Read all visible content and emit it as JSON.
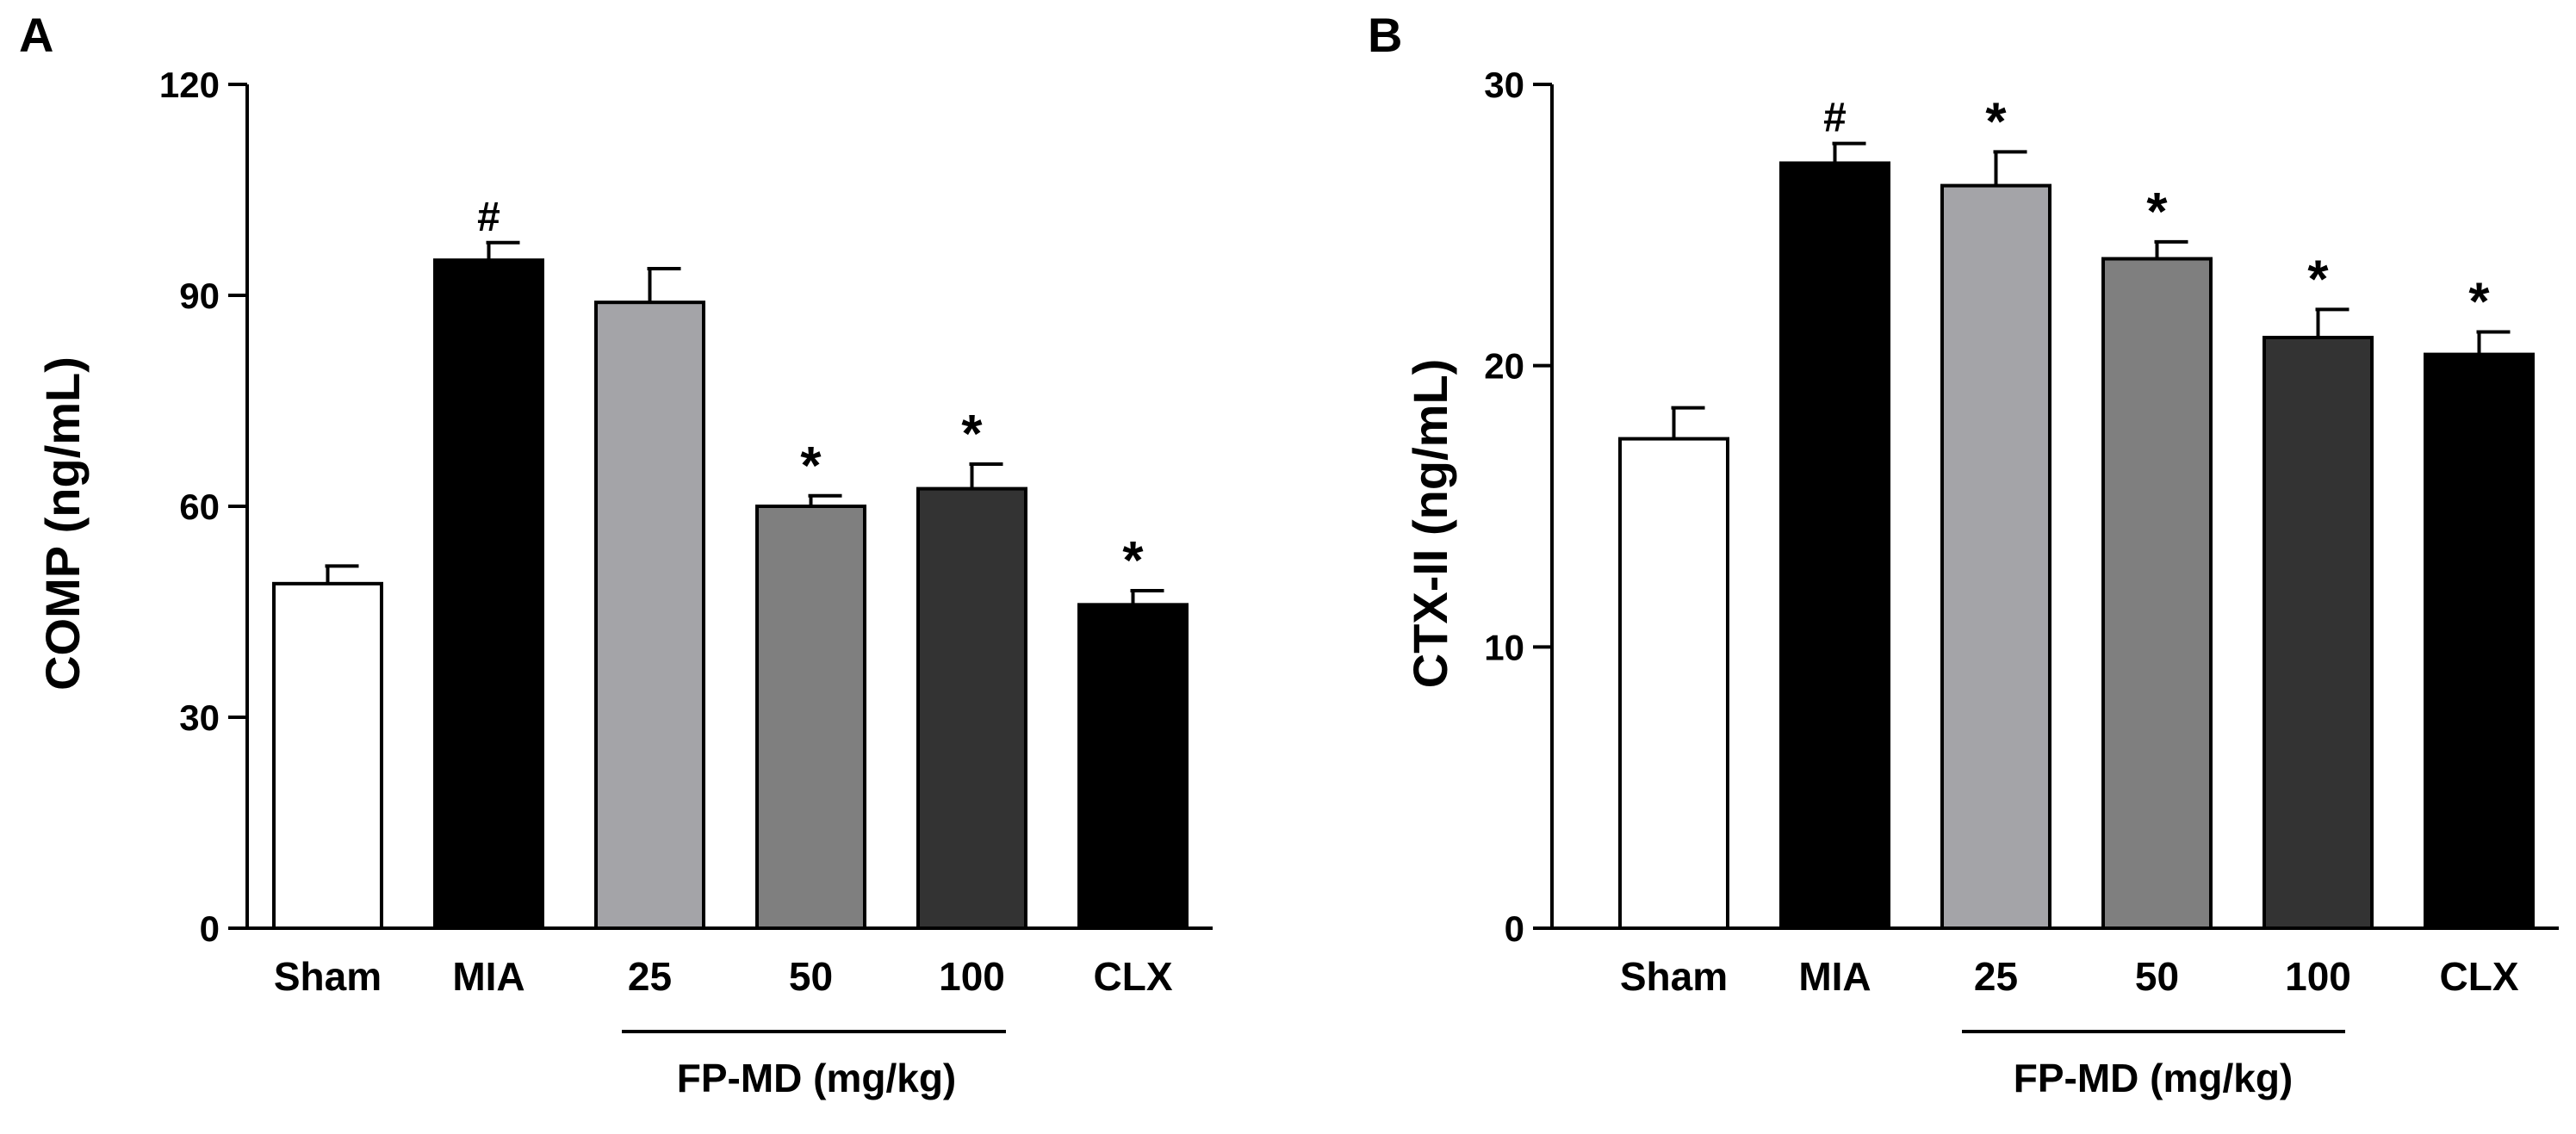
{
  "chart_data": [
    {
      "panel_label": "A",
      "type": "bar",
      "title": "",
      "ylabel": "COMP (ng/mL)",
      "xlabel": "",
      "ylim": [
        0,
        120
      ],
      "yticks": [
        0,
        30,
        60,
        90,
        120
      ],
      "categories": [
        "Sham",
        "MIA",
        "25",
        "50",
        "100",
        "CLX"
      ],
      "values": [
        49,
        95,
        89,
        60,
        62.5,
        46
      ],
      "errors": [
        2.5,
        2.5,
        4.8,
        1.5,
        3.5,
        2
      ],
      "bar_colors": [
        "#ffffff",
        "#000000",
        "#a4a4a8",
        "#7f7f7f",
        "#333333",
        "#000000"
      ],
      "annotations": [
        "",
        "#",
        "",
        "*",
        "*",
        "*"
      ],
      "group_label": "FP-MD (mg/kg)",
      "group_span": [
        "25",
        "100"
      ]
    },
    {
      "panel_label": "B",
      "type": "bar",
      "title": "",
      "ylabel": "CTX-II (ng/mL)",
      "xlabel": "",
      "ylim": [
        0,
        30
      ],
      "yticks": [
        0,
        10,
        20,
        30
      ],
      "categories": [
        "Sham",
        "MIA",
        "25",
        "50",
        "100",
        "CLX"
      ],
      "values": [
        17.4,
        27.2,
        26.4,
        23.8,
        21,
        20.4
      ],
      "errors": [
        1.1,
        0.7,
        1.2,
        0.6,
        1.0,
        0.8
      ],
      "bar_colors": [
        "#ffffff",
        "#000000",
        "#a4a4a8",
        "#7f7f7f",
        "#333333",
        "#000000"
      ],
      "annotations": [
        "",
        "#",
        "*",
        "*",
        "*",
        "*"
      ],
      "group_label": "FP-MD (mg/kg)",
      "group_span": [
        "25",
        "100"
      ]
    }
  ]
}
